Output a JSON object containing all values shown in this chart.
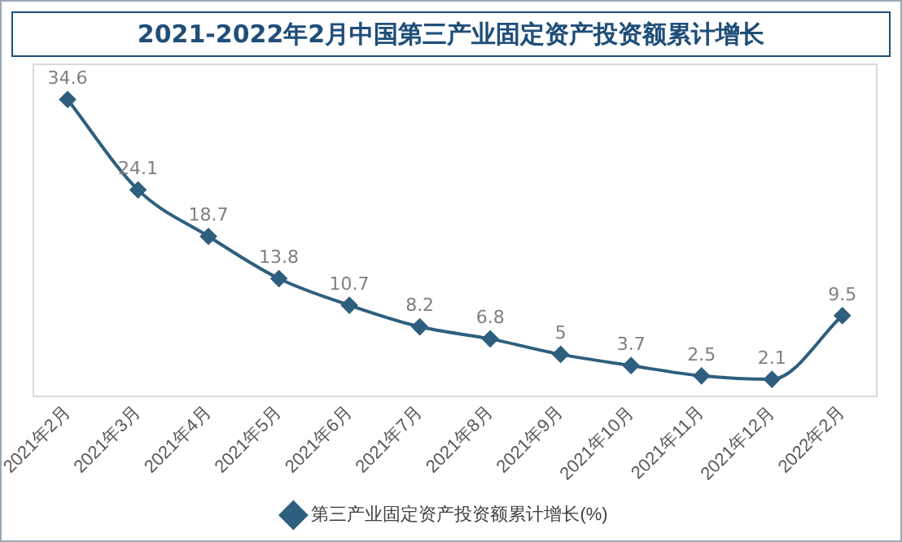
{
  "chart_data": {
    "type": "line",
    "title": "2021-2022年2月中国第三产业固定资产投资额累计增长",
    "categories": [
      "2021年2月",
      "2021年3月",
      "2021年4月",
      "2021年5月",
      "2021年6月",
      "2021年7月",
      "2021年8月",
      "2021年9月",
      "2021年10月",
      "2021年11月",
      "2021年12月",
      "2022年2月"
    ],
    "series": [
      {
        "name": "第三产业固定资产投资额累计增长(%)",
        "color": "#2e5f7f",
        "values": [
          34.6,
          24.1,
          18.7,
          13.8,
          10.7,
          8.2,
          6.8,
          5,
          3.7,
          2.5,
          2.1,
          9.5
        ]
      }
    ],
    "data_labels": true,
    "marker": "diamond",
    "line_style": "solid",
    "legend": "bottom",
    "grid": false,
    "tick_labels": "x"
  }
}
